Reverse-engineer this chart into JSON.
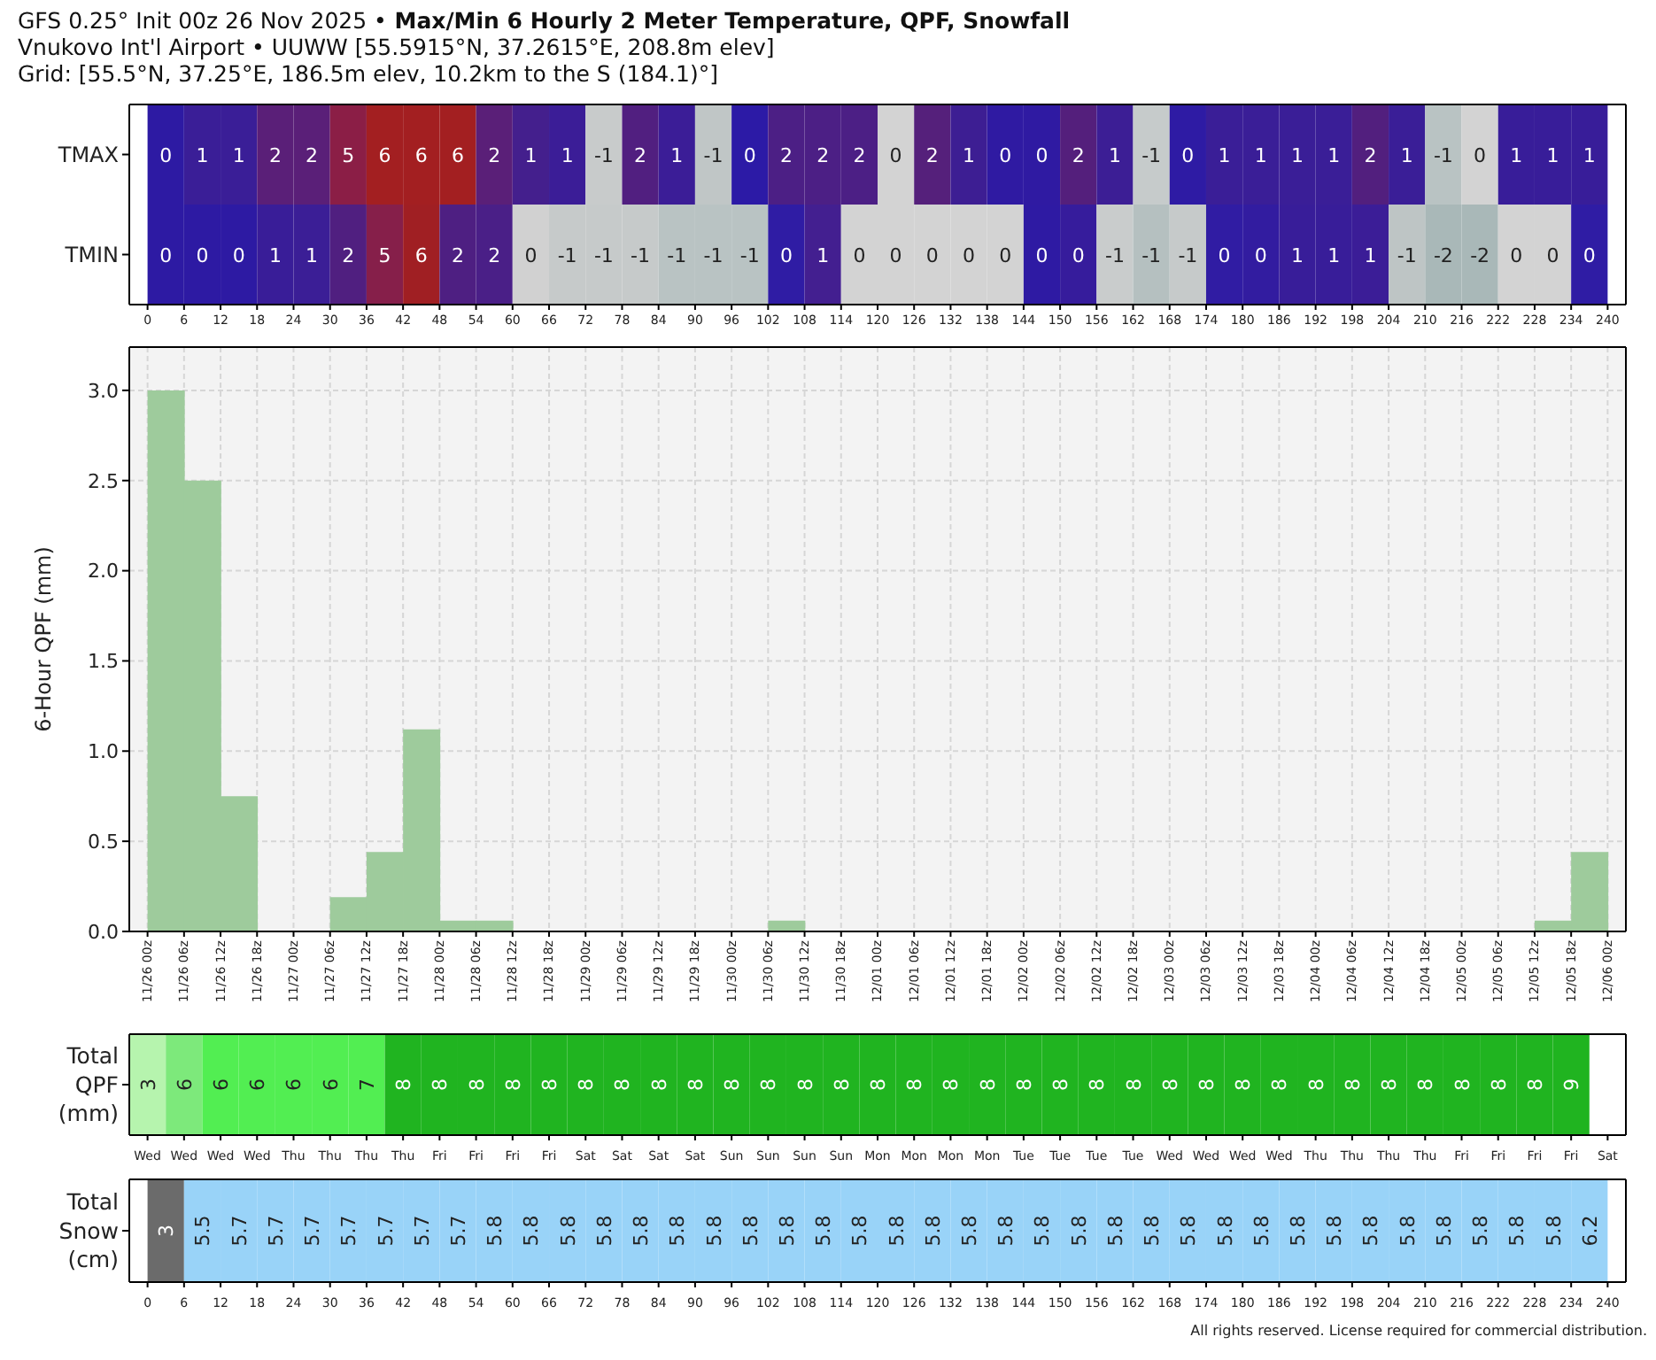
{
  "chart_data": [
    {
      "type": "heatmap",
      "title": "GFS 0.25° Init 00z 26 Nov 2025 • Max/Min 6 Hourly 2 Meter Temperature, QPF, Snowfall",
      "subtitle": "Vnukovo Int'l Airport • UUWW [55.5915°N, 37.2615°E, 208.8m elev]\nGrid: [55.5°N, 37.25°E, 186.5m elev, 10.2km to the S (184.1)°]",
      "data_labels": true,
      "x": [
        3,
        9,
        15,
        21,
        27,
        33,
        39,
        45,
        51,
        57,
        63,
        69,
        75,
        81,
        87,
        93,
        99,
        105,
        111,
        117,
        123,
        129,
        135,
        141,
        147,
        153,
        159,
        165,
        171,
        177,
        183,
        189,
        195,
        201,
        207,
        213,
        219,
        225,
        231,
        237
      ],
      "xlim": [
        -3,
        243
      ],
      "xticks": [
        0,
        6,
        12,
        18,
        24,
        30,
        36,
        42,
        48,
        54,
        60,
        66,
        72,
        78,
        84,
        90,
        96,
        102,
        108,
        114,
        120,
        126,
        132,
        138,
        144,
        150,
        156,
        162,
        168,
        174,
        180,
        186,
        192,
        198,
        204,
        210,
        216,
        222,
        228,
        234,
        240
      ],
      "y_categories": [
        "TMAX",
        "TMIN"
      ],
      "cells": [
        [
          0,
          1,
          1,
          2,
          2,
          5,
          6,
          6,
          6,
          2,
          1,
          1,
          -1,
          2,
          1,
          -1,
          0,
          2,
          2,
          2,
          0,
          2,
          1,
          0,
          0,
          2,
          1,
          -1,
          0,
          1,
          1,
          1,
          1,
          2,
          1,
          -1,
          0,
          1,
          1,
          1
        ],
        [
          0,
          0,
          0,
          1,
          1,
          2,
          5,
          6,
          2,
          2,
          0,
          -1,
          -1,
          -1,
          -1,
          -1,
          -1,
          0,
          1,
          0,
          0,
          0,
          0,
          0,
          0,
          0,
          -1,
          -1,
          -1,
          0,
          0,
          1,
          1,
          1,
          -1,
          -2,
          -2,
          0,
          0,
          0
        ]
      ],
      "colors": [
        [
          "#2d1aa3",
          "#3a1e97",
          "#3a1e97",
          "#5a1f78",
          "#5a1f78",
          "#8b1e46",
          "#a31f21",
          "#a31f21",
          "#a31f21",
          "#5a1f78",
          "#441f8d",
          "#3b1d97",
          "#c8cbcb",
          "#511f80",
          "#3b1d97",
          "#c0c6c6",
          "#2c1aa6",
          "#4c1f85",
          "#4c1f85",
          "#4c1f85",
          "#d3d3d3",
          "#55207b",
          "#3d1e93",
          "#2f1aa2",
          "#2f1aa2",
          "#541f7c",
          "#3c1e95",
          "#c6cbcb",
          "#2e1ba4",
          "#3a1e97",
          "#3a1e97",
          "#3a1e97",
          "#3a1e97",
          "#521f7e",
          "#3a1e97",
          "#b9c3c3",
          "#d3d3d3",
          "#381d99",
          "#381d99",
          "#381d99"
        ],
        [
          "#2d1aa3",
          "#2d1aa3",
          "#2d1aa3",
          "#391d98",
          "#3b1e96",
          "#501f80",
          "#861f4a",
          "#a01f23",
          "#4e1f82",
          "#4a1f87",
          "#d1d1d1",
          "#c6caca",
          "#c6caca",
          "#c6caca",
          "#b9c3c3",
          "#b9c3c3",
          "#b9c3c3",
          "#2f1ca4",
          "#431f90",
          "#d3d3d3",
          "#d3d3d3",
          "#d3d3d3",
          "#d3d3d3",
          "#d3d3d3",
          "#2e1aa3",
          "#361c9c",
          "#c9cccc",
          "#b5c0c0",
          "#c6caca",
          "#301ca3",
          "#321ca0",
          "#381d99",
          "#381d99",
          "#3b1d97",
          "#bec5c5",
          "#a9b8b8",
          "#a9b8b8",
          "#d3d3d3",
          "#d3d3d3",
          "#2f1ca4"
        ]
      ]
    },
    {
      "type": "histogram",
      "ylabel": "6-Hour QPF (mm)",
      "color": "#9ecb9c",
      "grid": true,
      "bins": [
        "2025-11-26T00:00",
        "2025-11-26T06:00",
        "2025-11-26T12:00",
        "2025-11-26T18:00",
        "2025-11-27T00:00",
        "2025-11-27T06:00",
        "2025-11-27T12:00",
        "2025-11-27T18:00",
        "2025-11-28T00:00",
        "2025-11-28T06:00",
        "2025-11-28T12:00",
        "2025-11-28T18:00",
        "2025-11-29T00:00",
        "2025-11-29T06:00",
        "2025-11-29T12:00",
        "2025-11-29T18:00",
        "2025-11-30T00:00",
        "2025-11-30T06:00",
        "2025-11-30T12:00",
        "2025-11-30T18:00",
        "2025-12-01T00:00",
        "2025-12-01T06:00",
        "2025-12-01T12:00",
        "2025-12-01T18:00",
        "2025-12-02T00:00",
        "2025-12-02T06:00",
        "2025-12-02T12:00",
        "2025-12-02T18:00",
        "2025-12-03T00:00",
        "2025-12-03T06:00",
        "2025-12-03T12:00",
        "2025-12-03T18:00",
        "2025-12-04T00:00",
        "2025-12-04T06:00",
        "2025-12-04T12:00",
        "2025-12-04T18:00",
        "2025-12-05T00:00",
        "2025-12-05T06:00",
        "2025-12-05T12:00",
        "2025-12-05T18:00",
        "2025-12-06T00:00"
      ],
      "values": [
        3.0,
        2.5,
        0.75,
        0,
        0,
        0.19,
        0.44,
        1.12,
        0.06,
        0.06,
        0,
        0,
        0,
        0,
        0,
        0,
        0,
        0.06,
        0,
        0,
        0,
        0,
        0,
        0,
        0,
        0,
        0,
        0,
        0,
        0,
        0,
        0,
        0,
        0,
        0,
        0,
        0,
        0,
        0.06,
        0.44
      ],
      "xlim": [
        "2025-11-25T21:00",
        "2025-12-06T03:00"
      ],
      "xticks": [
        {
          "value": "2025-11-26T00:00",
          "label": "11/26 00z"
        },
        {
          "value": "2025-11-26T06:00",
          "label": "11/26 06z"
        },
        {
          "value": "2025-11-26T12:00",
          "label": "11/26 12z"
        },
        {
          "value": "2025-11-26T18:00",
          "label": "11/26 18z"
        },
        {
          "value": "2025-11-27T00:00",
          "label": "11/27 00z"
        },
        {
          "value": "2025-11-27T06:00",
          "label": "11/27 06z"
        },
        {
          "value": "2025-11-27T12:00",
          "label": "11/27 12z"
        },
        {
          "value": "2025-11-27T18:00",
          "label": "11/27 18z"
        },
        {
          "value": "2025-11-28T00:00",
          "label": "11/28 00z"
        },
        {
          "value": "2025-11-28T06:00",
          "label": "11/28 06z"
        },
        {
          "value": "2025-11-28T12:00",
          "label": "11/28 12z"
        },
        {
          "value": "2025-11-28T18:00",
          "label": "11/28 18z"
        },
        {
          "value": "2025-11-29T00:00",
          "label": "11/29 00z"
        },
        {
          "value": "2025-11-29T06:00",
          "label": "11/29 06z"
        },
        {
          "value": "2025-11-29T12:00",
          "label": "11/29 12z"
        },
        {
          "value": "2025-11-29T18:00",
          "label": "11/29 18z"
        },
        {
          "value": "2025-11-30T00:00",
          "label": "11/30 00z"
        },
        {
          "value": "2025-11-30T06:00",
          "label": "11/30 06z"
        },
        {
          "value": "2025-11-30T12:00",
          "label": "11/30 12z"
        },
        {
          "value": "2025-11-30T18:00",
          "label": "11/30 18z"
        },
        {
          "value": "2025-12-01T00:00",
          "label": "12/01 00z"
        },
        {
          "value": "2025-12-01T06:00",
          "label": "12/01 06z"
        },
        {
          "value": "2025-12-01T12:00",
          "label": "12/01 12z"
        },
        {
          "value": "2025-12-01T18:00",
          "label": "12/01 18z"
        },
        {
          "value": "2025-12-02T00:00",
          "label": "12/02 00z"
        },
        {
          "value": "2025-12-02T06:00",
          "label": "12/02 06z"
        },
        {
          "value": "2025-12-02T12:00",
          "label": "12/02 12z"
        },
        {
          "value": "2025-12-02T18:00",
          "label": "12/02 18z"
        },
        {
          "value": "2025-12-03T00:00",
          "label": "12/03 00z"
        },
        {
          "value": "2025-12-03T06:00",
          "label": "12/03 06z"
        },
        {
          "value": "2025-12-03T12:00",
          "label": "12/03 12z"
        },
        {
          "value": "2025-12-03T18:00",
          "label": "12/03 18z"
        },
        {
          "value": "2025-12-04T00:00",
          "label": "12/04 00z"
        },
        {
          "value": "2025-12-04T06:00",
          "label": "12/04 06z"
        },
        {
          "value": "2025-12-04T12:00",
          "label": "12/04 12z"
        },
        {
          "value": "2025-12-04T18:00",
          "label": "12/04 18z"
        },
        {
          "value": "2025-12-05T00:00",
          "label": "12/05 00z"
        },
        {
          "value": "2025-12-05T06:00",
          "label": "12/05 06z"
        },
        {
          "value": "2025-12-05T12:00",
          "label": "12/05 12z"
        },
        {
          "value": "2025-12-05T18:00",
          "label": "12/05 18z"
        },
        {
          "value": "2025-12-06T00:00",
          "label": "12/06 00z"
        }
      ],
      "ylim": [
        0,
        3.24
      ],
      "yticks": [
        {
          "value": 0,
          "label": "0.0"
        },
        0.5,
        {
          "value": 1,
          "label": "1.0"
        },
        1.5,
        {
          "value": 2,
          "label": "2.0"
        },
        2.5,
        {
          "value": 3,
          "label": "3.0"
        }
      ]
    },
    {
      "type": "heatmap",
      "data_labels": true,
      "categories": [
        "Wed",
        "Wed",
        "Wed",
        "Wed",
        "Thu",
        "Thu",
        "Thu",
        "Thu",
        "Fri",
        "Fri",
        "Fri",
        "Fri",
        "Sat",
        "Sat",
        "Sat",
        "Sat",
        "Sun",
        "Sun",
        "Sun",
        "Sun",
        "Mon",
        "Mon",
        "Mon",
        "Mon",
        "Tue",
        "Tue",
        "Tue",
        "Tue",
        "Wed",
        "Wed",
        "Wed",
        "Wed",
        "Thu",
        "Thu",
        "Thu",
        "Thu",
        "Fri",
        "Fri",
        "Fri",
        "Fri",
        "Sat"
      ],
      "y_categories": [
        "Total\nQPF\n(mm)"
      ],
      "cells": [
        [
          3,
          6,
          6,
          6,
          6,
          6,
          7,
          8,
          8,
          8,
          8,
          8,
          8,
          8,
          8,
          8,
          8,
          8,
          8,
          8,
          8,
          8,
          8,
          8,
          8,
          8,
          8,
          8,
          8,
          8,
          8,
          8,
          8,
          8,
          8,
          8,
          8,
          8,
          8,
          9,
          null
        ]
      ],
      "colors": [
        [
          "#b6f4ae",
          "#7de97b",
          "#52ee52",
          "#52ee52",
          "#52ee52",
          "#52ee52",
          "#52ee52",
          "#20b420",
          "#20b420",
          "#20b420",
          "#20b420",
          "#20b420",
          "#20b420",
          "#20b420",
          "#20b420",
          "#20b420",
          "#20b420",
          "#20b420",
          "#20b420",
          "#20b420",
          "#20b420",
          "#20b420",
          "#20b420",
          "#20b420",
          "#20b420",
          "#20b420",
          "#20b420",
          "#20b420",
          "#20b420",
          "#20b420",
          "#20b420",
          "#20b420",
          "#20b420",
          "#20b420",
          "#20b420",
          "#20b420",
          "#20b420",
          "#20b420",
          "#20b420",
          "#20b420",
          null
        ]
      ]
    },
    {
      "type": "heatmap",
      "data_labels": true,
      "x": [
        3,
        9,
        15,
        21,
        27,
        33,
        39,
        45,
        51,
        57,
        63,
        69,
        75,
        81,
        87,
        93,
        99,
        105,
        111,
        117,
        123,
        129,
        135,
        141,
        147,
        153,
        159,
        165,
        171,
        177,
        183,
        189,
        195,
        201,
        207,
        213,
        219,
        225,
        231,
        237
      ],
      "xlim": [
        -3,
        243
      ],
      "xticks": [
        0,
        6,
        12,
        18,
        24,
        30,
        36,
        42,
        48,
        54,
        60,
        66,
        72,
        78,
        84,
        90,
        96,
        102,
        108,
        114,
        120,
        126,
        132,
        138,
        144,
        150,
        156,
        162,
        168,
        174,
        180,
        186,
        192,
        198,
        204,
        210,
        216,
        222,
        228,
        234,
        240
      ],
      "y_categories": [
        "Total\nSnow\n(cm)"
      ],
      "cells": [
        [
          3,
          5.5,
          5.7,
          5.7,
          5.7,
          5.7,
          5.7,
          5.7,
          5.7,
          5.8,
          5.8,
          5.8,
          5.8,
          5.8,
          5.8,
          5.8,
          5.8,
          5.8,
          5.8,
          5.8,
          5.8,
          5.8,
          5.8,
          5.8,
          5.8,
          5.8,
          5.8,
          5.8,
          5.8,
          5.8,
          5.8,
          5.8,
          5.8,
          5.8,
          5.8,
          5.8,
          5.8,
          5.8,
          5.8,
          6.2
        ]
      ],
      "colors": [
        [
          "#6b6b6b",
          "#99d3f8",
          "#99d3f8",
          "#99d3f8",
          "#99d3f8",
          "#99d3f8",
          "#99d3f8",
          "#99d3f8",
          "#99d3f8",
          "#99d3f8",
          "#99d3f8",
          "#99d3f8",
          "#99d3f8",
          "#99d3f8",
          "#99d3f8",
          "#99d3f8",
          "#99d3f8",
          "#99d3f8",
          "#99d3f8",
          "#99d3f8",
          "#99d3f8",
          "#99d3f8",
          "#99d3f8",
          "#99d3f8",
          "#99d3f8",
          "#99d3f8",
          "#99d3f8",
          "#99d3f8",
          "#99d3f8",
          "#99d3f8",
          "#99d3f8",
          "#99d3f8",
          "#99d3f8",
          "#99d3f8",
          "#99d3f8",
          "#99d3f8",
          "#99d3f8",
          "#99d3f8",
          "#99d3f8",
          "#99d3f8"
        ]
      ],
      "annotations": [
        "All rights reserved. License required for commercial distribution."
      ]
    }
  ]
}
